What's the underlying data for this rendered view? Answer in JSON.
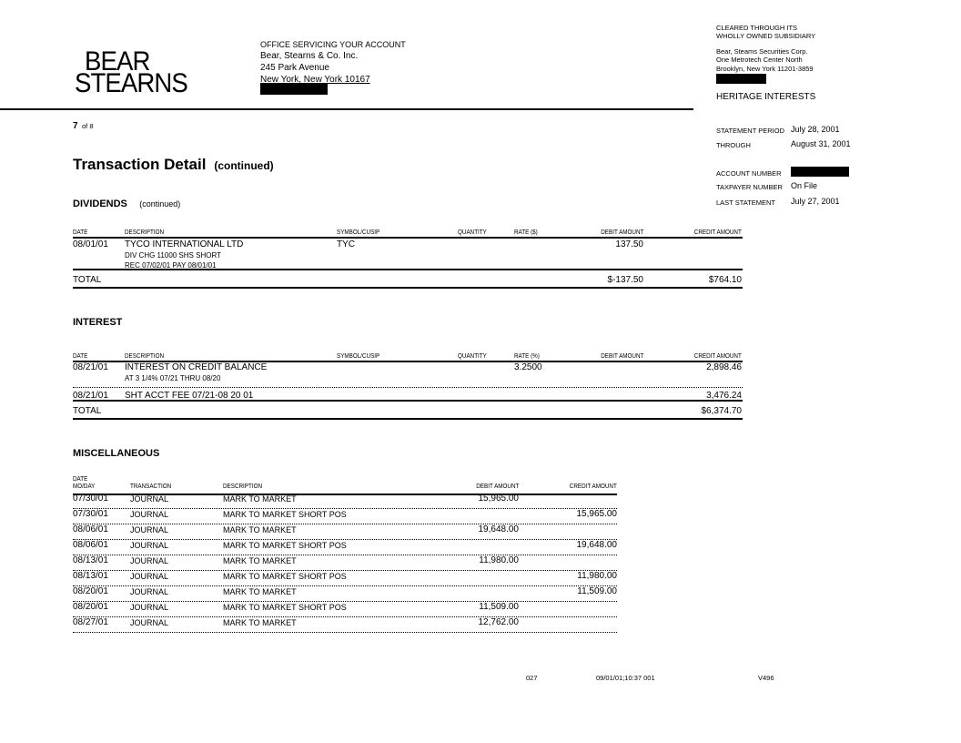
{
  "logo": {
    "line1": "BEAR",
    "line2": "STEARNS"
  },
  "office": {
    "heading": "OFFICE SERVICING YOUR ACCOUNT",
    "name": "Bear, Stearns & Co. Inc.",
    "street": "245 Park Avenue",
    "city": "New York, New York  10167"
  },
  "clearing": {
    "line1": "CLEARED THROUGH ITS",
    "line2": "WHOLLY OWNED SUBSIDIARY",
    "name": "Bear, Steams Securities Corp.",
    "street": "One Metrotech Center North",
    "city": "Brooklyn,  New York  11201-3859",
    "account_name": "HERITAGE INTERESTS"
  },
  "statement": {
    "period_label": "STATEMENT PERIOD",
    "period": "July 28, 2001",
    "through_label": "THROUGH",
    "through": "August 31, 2001",
    "account_label": "ACCOUNT NUMBER",
    "taxpayer_label": "TAXPAYER NUMBER",
    "taxpayer": "On File",
    "last_label": "LAST STATEMENT",
    "last": "July 27, 2001"
  },
  "page": {
    "current": "7",
    "of": "of 8"
  },
  "title": {
    "main": "Transaction Detail",
    "sub": "(continued)"
  },
  "dividends": {
    "title": "DIVIDENDS",
    "sub": "(continued)",
    "headers": [
      "DATE",
      "DESCRIPTION",
      "SYMBOL/CUSIP",
      "QUANTITY",
      "RATE ($)",
      "DEBIT AMOUNT",
      "CREDIT AMOUNT"
    ],
    "rows": [
      {
        "date": "08/01/01",
        "desc": [
          "TYCO INTERNATIONAL  LTD",
          "DIV CHG   11000 SHS SHORT",
          "REC 07/02/01 PAY 08/01/01"
        ],
        "symbol": "TYC",
        "quantity": "",
        "rate": "",
        "debit": "137.50",
        "credit": ""
      }
    ],
    "total": {
      "label": "TOTAL",
      "debit": "$-137.50",
      "credit": "$764.10"
    }
  },
  "interest": {
    "title": "INTEREST",
    "headers": [
      "DATE",
      "DESCRIPTION",
      "SYMBOL/CUSIP",
      "QUANTITY",
      "RATE (%)",
      "DEBIT AMOUNT",
      "CREDIT AMOUNT"
    ],
    "rows": [
      {
        "date": "08/21/01",
        "desc": [
          "INTEREST ON CREDIT BALANCE",
          "AT  3 1/4% 07/21 THRU 08/20"
        ],
        "symbol": "",
        "quantity": "",
        "rate": "3.2500",
        "debit": "",
        "credit": "2,898.46"
      },
      {
        "date": "08/21/01",
        "desc": [
          "SHT ACCT FEE 07/21-08 20 01"
        ],
        "symbol": "",
        "quantity": "",
        "rate": "",
        "debit": "",
        "credit": "3,476.24"
      }
    ],
    "total": {
      "label": "TOTAL",
      "debit": "",
      "credit": "$6,374.70"
    }
  },
  "misc": {
    "title": "MISCELLANEOUS",
    "headers": [
      "DATE",
      "MO/DAY",
      "TRANSACTION",
      "DESCRIPTION",
      "DEBIT AMOUNT",
      "CREDIT AMOUNT"
    ],
    "rows": [
      {
        "date": "07/30/01",
        "trans": "JOURNAL",
        "desc": "MARK TO MARKET",
        "debit": "15,965.00",
        "credit": ""
      },
      {
        "date": "07/30/01",
        "trans": "JOURNAL",
        "desc": "MARK TO MARKET  SHORT POS",
        "debit": "",
        "credit": "15,965.00"
      },
      {
        "date": "08/06/01",
        "trans": "JOURNAL",
        "desc": "MARK TO MARKET",
        "debit": "19,648.00",
        "credit": ""
      },
      {
        "date": "08/06/01",
        "trans": "JOURNAL",
        "desc": "MARK TO MARKET  SHORT POS",
        "debit": "",
        "credit": "19,648.00"
      },
      {
        "date": "08/13/01",
        "trans": "JOURNAL",
        "desc": "MARK TO MARKET",
        "debit": "11,980.00",
        "credit": ""
      },
      {
        "date": "08/13/01",
        "trans": "JOURNAL",
        "desc": "MARK TO MARKET  SHORT POS",
        "debit": "",
        "credit": "11,980.00"
      },
      {
        "date": "08/20/01",
        "trans": "JOURNAL",
        "desc": "MARK TO MARKET",
        "debit": "",
        "credit": "11,509.00"
      },
      {
        "date": "08/20/01",
        "trans": "JOURNAL",
        "desc": "MARK TO MARKET  SHORT POS",
        "debit": "11,509.00",
        "credit": ""
      },
      {
        "date": "08/27/01",
        "trans": "JOURNAL",
        "desc": "MARK TO MARKET",
        "debit": "12,762.00",
        "credit": ""
      }
    ]
  },
  "footer": {
    "code": "027",
    "timestamp": "09/01/01;10:37  001",
    "version": "V496"
  }
}
